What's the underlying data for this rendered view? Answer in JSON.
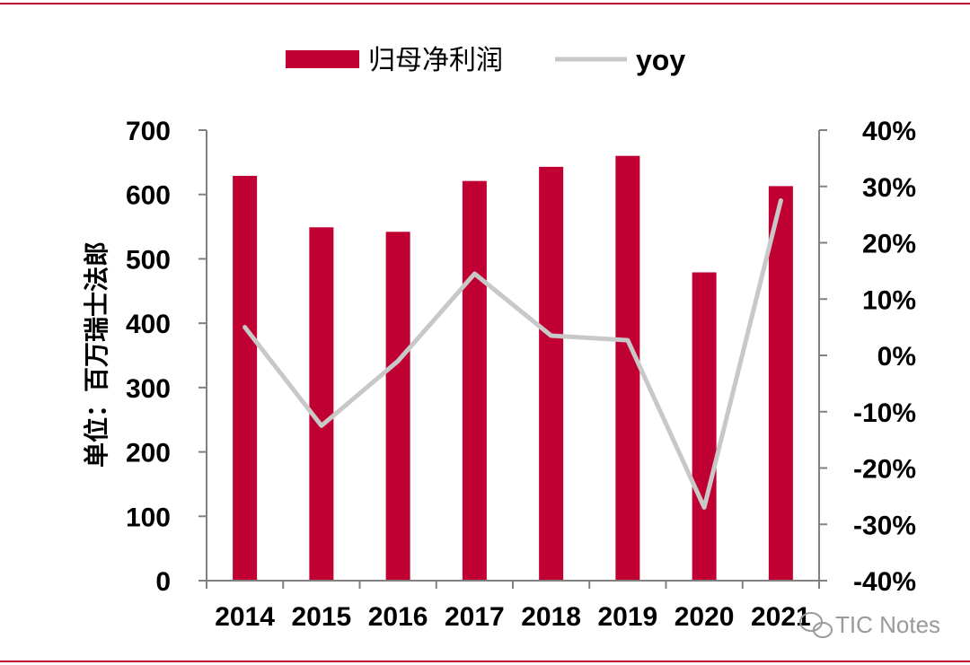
{
  "chart_data": {
    "type": "bar",
    "categories": [
      "2014",
      "2015",
      "2016",
      "2017",
      "2018",
      "2019",
      "2020",
      "2021"
    ],
    "series": [
      {
        "name": "归母净利润",
        "type": "bar",
        "axis": "left",
        "values": [
          629,
          549,
          542,
          621,
          643,
          660,
          479,
          613
        ]
      },
      {
        "name": "yoy",
        "type": "line",
        "axis": "right",
        "values": [
          0.05,
          -0.125,
          -0.01,
          0.145,
          0.035,
          0.027,
          -0.27,
          0.275
        ]
      }
    ],
    "ylabel": "单位：百万瑞士法郎",
    "ylim": [
      0,
      700
    ],
    "yticks": [
      "0",
      "100",
      "200",
      "300",
      "400",
      "500",
      "600",
      "700"
    ],
    "y2lim": [
      -0.4,
      0.4
    ],
    "y2ticks": [
      "-40%",
      "-30%",
      "-20%",
      "-10%",
      "0%",
      "10%",
      "20%",
      "30%",
      "40%"
    ],
    "legend_position": "top-center",
    "grid": false,
    "colors": {
      "bar": "#c00033",
      "line": "#c8c8c8",
      "border": "#c00033",
      "axis": "#808080"
    }
  },
  "watermark": {
    "text": "TIC Notes",
    "icon": "wechat-icon"
  }
}
